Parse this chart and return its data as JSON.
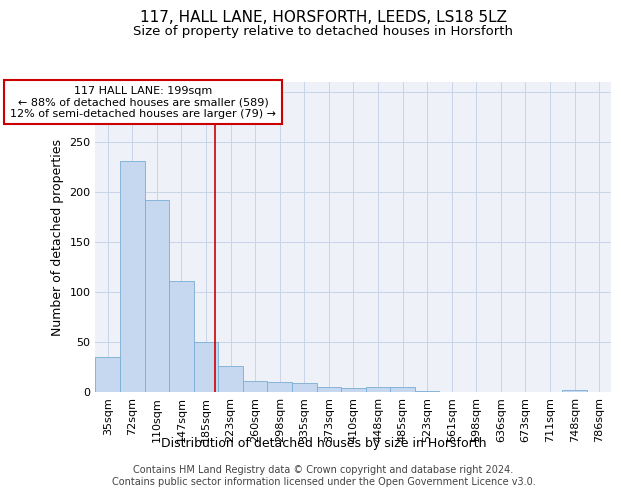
{
  "title_line1": "117, HALL LANE, HORSFORTH, LEEDS, LS18 5LZ",
  "title_line2": "Size of property relative to detached houses in Horsforth",
  "xlabel": "Distribution of detached houses by size in Horsforth",
  "ylabel": "Number of detached properties",
  "bar_color": "#c5d8f0",
  "bar_edge_color": "#7aadd4",
  "categories": [
    "35sqm",
    "72sqm",
    "110sqm",
    "147sqm",
    "185sqm",
    "223sqm",
    "260sqm",
    "298sqm",
    "335sqm",
    "373sqm",
    "410sqm",
    "448sqm",
    "485sqm",
    "523sqm",
    "561sqm",
    "598sqm",
    "636sqm",
    "673sqm",
    "711sqm",
    "748sqm",
    "786sqm"
  ],
  "values": [
    35,
    231,
    192,
    111,
    50,
    26,
    11,
    10,
    9,
    5,
    4,
    5,
    5,
    1,
    0,
    0,
    0,
    0,
    0,
    2,
    0
  ],
  "annotation_text": "117 HALL LANE: 199sqm\n← 88% of detached houses are smaller (589)\n12% of semi-detached houses are larger (79) →",
  "annotation_box_color": "#ffffff",
  "annotation_box_edgecolor": "#cc0000",
  "red_line_color": "#cc0000",
  "red_line_index": 4.37,
  "ylim": [
    0,
    310
  ],
  "yticks": [
    0,
    50,
    100,
    150,
    200,
    250,
    300
  ],
  "grid_color": "#c8d4e8",
  "background_color": "#eef2f8",
  "footer_line1": "Contains HM Land Registry data © Crown copyright and database right 2024.",
  "footer_line2": "Contains public sector information licensed under the Open Government Licence v3.0.",
  "title_fontsize": 11,
  "subtitle_fontsize": 9.5,
  "tick_fontsize": 8,
  "ylabel_fontsize": 9,
  "xlabel_fontsize": 9,
  "annotation_fontsize": 8,
  "footer_fontsize": 7
}
